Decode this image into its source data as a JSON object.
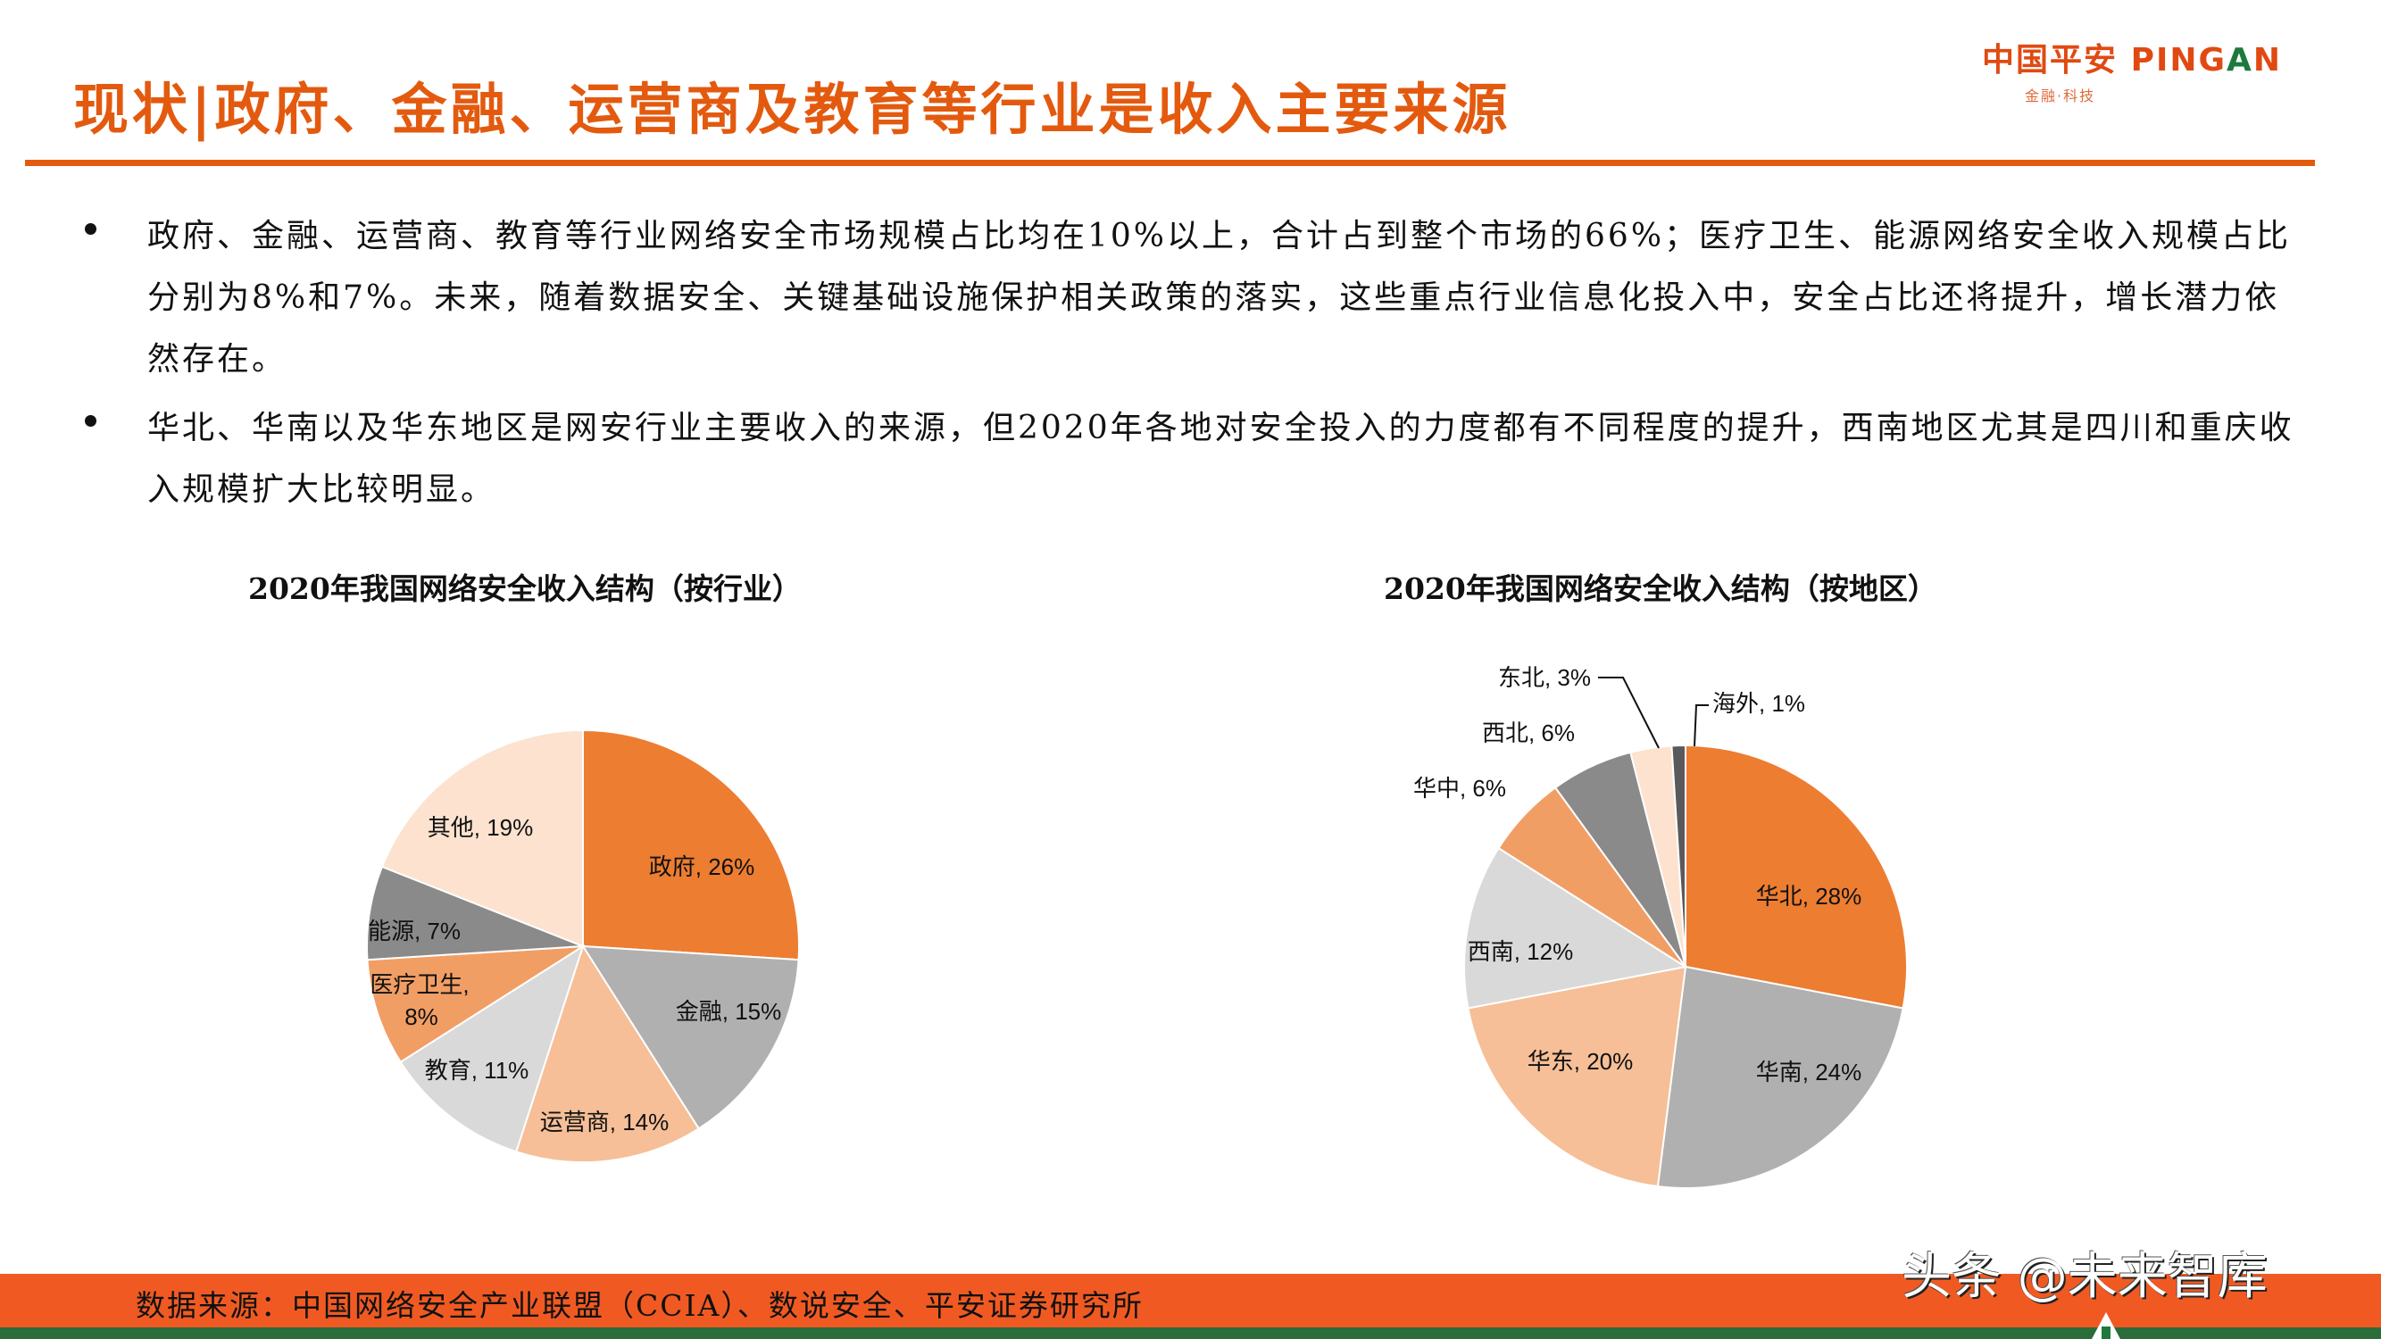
{
  "header": {
    "title": "现状|政府、金融、运营商及教育等行业是收入主要来源",
    "logo": {
      "cn": "中国平安",
      "en_prefix": "PING",
      "en_a": "A",
      "en_suffix": "N",
      "tagline": "金融·科技"
    }
  },
  "bullets": [
    {
      "text": "政府、金融、运营商、教育等行业网络安全市场规模占比均在10%以上，合计占到整个市场的66%；医疗卫生、能源网络安全收入规模占比分别为8%和7%。未来，随着数据安全、关键基础设施保护相关政策的落实，这些重点行业信息化投入中，安全占比还将提升，增长潜力依然存在。"
    },
    {
      "text": "华北、华南以及华东地区是网安行业主要收入的来源，但2020年各地对安全投入的力度都有不同程度的提升，西南地区尤其是四川和重庆收入规模扩大比较明显。"
    }
  ],
  "chart_data": [
    {
      "type": "pie",
      "title": "2020年我国网络安全收入结构（按行业）",
      "categories": [
        "政府",
        "金融",
        "运营商",
        "教育",
        "医疗卫生",
        "能源",
        "其他"
      ],
      "values": [
        26,
        15,
        14,
        11,
        8,
        7,
        19
      ],
      "unit": "%",
      "colors": [
        "#ed7d31",
        "#b0b0b0",
        "#f6bf97",
        "#d9d9d9",
        "#f19e65",
        "#8a8a8a",
        "#fce2cf"
      ],
      "labels": [
        "政府, 26%",
        "金融, 15%",
        "运营商, 14%",
        "教育, 11%",
        "医疗卫生,",
        "能源, 7%",
        "其他, 19%"
      ],
      "label_extra": {
        "医疗卫生": "8%"
      },
      "start_angle": "12 o'clock, clockwise",
      "legend": "none (data labels on slices)"
    },
    {
      "type": "pie",
      "title": "2020年我国网络安全收入结构（按地区）",
      "categories": [
        "华北",
        "华南",
        "华东",
        "西南",
        "华中",
        "西北",
        "东北",
        "海外"
      ],
      "values": [
        28,
        24,
        20,
        12,
        6,
        6,
        3,
        1
      ],
      "unit": "%",
      "colors": [
        "#ed7d31",
        "#b0b0b0",
        "#f6bf97",
        "#d9d9d9",
        "#f19e65",
        "#8a8a8a",
        "#fce2cf",
        "#5a5a5a"
      ],
      "labels": [
        "华北, 28%",
        "华南, 24%",
        "华东, 20%",
        "西南, 12%",
        "华中, 6%",
        "西北, 6%",
        "东北, 3%",
        "海外, 1%"
      ],
      "start_angle": "12 o'clock, clockwise",
      "legend": "none (data labels on/outside slices with leader lines for 东北 and 海外)"
    }
  ],
  "footer": {
    "source": "数据来源：中国网络安全产业联盟（CCIA）、数说安全、平安证券研究所",
    "watermark": "头条 @未来智库"
  },
  "colors": {
    "accent": "#e35a0f",
    "footer_bg": "#f05a22",
    "footer_stripe": "#2c6b3a"
  }
}
